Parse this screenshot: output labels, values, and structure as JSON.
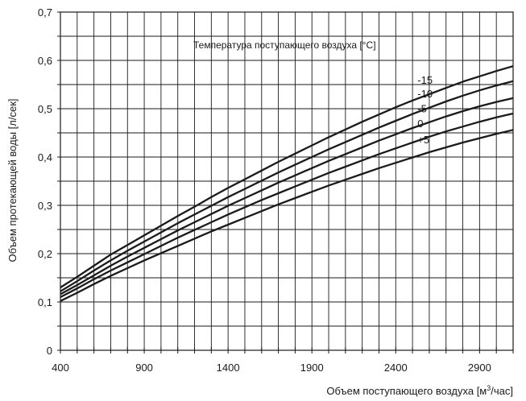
{
  "chart_data": {
    "type": "line",
    "xlabel_text": "Объем поступающего воздуха [м",
    "xlabel_sup": "3",
    "xlabel_tail": "/час]",
    "ylabel": "Объем протекающей воды [л/сек]",
    "legend_title": "Температура поступающего воздуха [°C]",
    "xlim": [
      400,
      3100
    ],
    "ylim": [
      0,
      0.7
    ],
    "x_tick_labels": [
      "400",
      "900",
      "1400",
      "1900",
      "2400",
      "2900"
    ],
    "y_tick_labels": [
      "0",
      "0,1",
      "0,2",
      "0,3",
      "0,4",
      "0,5",
      "0,6",
      "0,7"
    ],
    "grid": true,
    "line_color": "#1a1a1a",
    "x": [
      400,
      500,
      600,
      700,
      800,
      900,
      1000,
      1100,
      1200,
      1300,
      1400,
      1500,
      1600,
      1700,
      1800,
      1900,
      2000,
      2100,
      2200,
      2300,
      2400,
      2500,
      2600,
      2700,
      2800,
      2900,
      3000,
      3100
    ],
    "series": [
      {
        "name": "-15",
        "values": [
          0.13,
          0.152,
          0.175,
          0.198,
          0.218,
          0.238,
          0.258,
          0.278,
          0.297,
          0.317,
          0.336,
          0.354,
          0.372,
          0.39,
          0.407,
          0.424,
          0.441,
          0.457,
          0.473,
          0.488,
          0.503,
          0.517,
          0.53,
          0.543,
          0.556,
          0.567,
          0.578,
          0.588
        ]
      },
      {
        "name": "-10",
        "values": [
          0.122,
          0.143,
          0.165,
          0.186,
          0.206,
          0.225,
          0.244,
          0.263,
          0.281,
          0.299,
          0.317,
          0.334,
          0.351,
          0.368,
          0.384,
          0.4,
          0.416,
          0.431,
          0.446,
          0.461,
          0.475,
          0.489,
          0.502,
          0.515,
          0.527,
          0.538,
          0.548,
          0.557
        ]
      },
      {
        "name": "-5",
        "values": [
          0.116,
          0.135,
          0.155,
          0.175,
          0.194,
          0.212,
          0.23,
          0.248,
          0.265,
          0.282,
          0.299,
          0.315,
          0.331,
          0.347,
          0.362,
          0.377,
          0.392,
          0.406,
          0.42,
          0.434,
          0.447,
          0.46,
          0.472,
          0.484,
          0.495,
          0.505,
          0.514,
          0.522
        ]
      },
      {
        "name": "0",
        "values": [
          0.11,
          0.128,
          0.147,
          0.165,
          0.182,
          0.199,
          0.216,
          0.233,
          0.249,
          0.265,
          0.281,
          0.296,
          0.311,
          0.325,
          0.339,
          0.353,
          0.367,
          0.38,
          0.393,
          0.406,
          0.418,
          0.43,
          0.442,
          0.453,
          0.463,
          0.473,
          0.482,
          0.49
        ]
      },
      {
        "name": "+5",
        "values": [
          0.102,
          0.119,
          0.137,
          0.154,
          0.17,
          0.186,
          0.201,
          0.216,
          0.231,
          0.246,
          0.26,
          0.274,
          0.288,
          0.302,
          0.315,
          0.328,
          0.341,
          0.353,
          0.365,
          0.377,
          0.388,
          0.399,
          0.41,
          0.42,
          0.43,
          0.439,
          0.448,
          0.456
        ]
      }
    ]
  }
}
